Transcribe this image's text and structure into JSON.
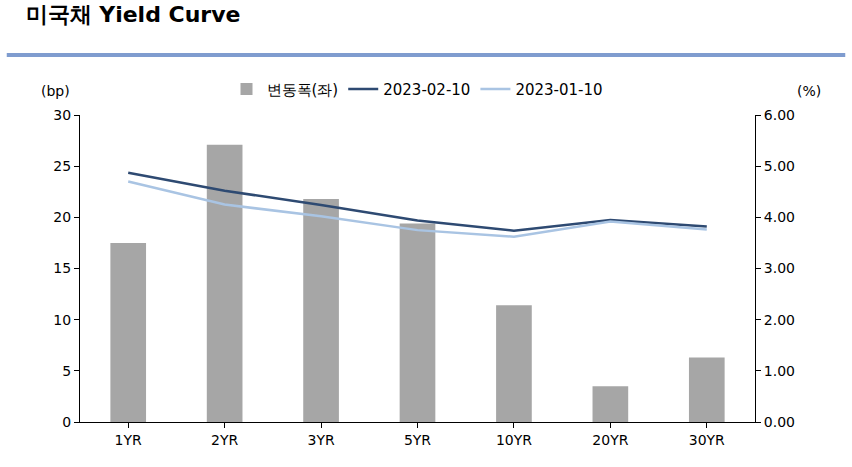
{
  "chart_data": {
    "type": "bar",
    "title": "미국채 Yield Curve",
    "ylabel": "(bp)",
    "y2label": "(%)",
    "categories": [
      "1YR",
      "2YR",
      "3YR",
      "5YR",
      "10YR",
      "20YR",
      "30YR"
    ],
    "series": [
      {
        "name": "변동폭(좌)",
        "type": "bar",
        "color": "#a6a6a6",
        "values": [
          17.5,
          27.1,
          21.8,
          19.4,
          11.4,
          3.5,
          6.3
        ]
      },
      {
        "name": "2023-02-10",
        "type": "line",
        "axis": "y2",
        "color": "#2e4a72",
        "values": [
          4.87,
          4.52,
          4.24,
          3.94,
          3.74,
          3.95,
          3.82
        ]
      },
      {
        "name": "2023-01-10",
        "type": "line",
        "axis": "y2",
        "color": "#a9c4e3",
        "values": [
          4.7,
          4.25,
          4.02,
          3.75,
          3.62,
          3.92,
          3.76
        ]
      }
    ],
    "ylim": [
      0,
      30
    ],
    "yticks": [
      0,
      5,
      10,
      15,
      20,
      25,
      30
    ],
    "y2lim": [
      0,
      6
    ],
    "y2ticks": [
      {
        "value": 0,
        "label": "0.00"
      },
      {
        "value": 1,
        "label": "1.00"
      },
      {
        "value": 2,
        "label": "2.00"
      },
      {
        "value": 3,
        "label": "3.00"
      },
      {
        "value": 4,
        "label": "4.00"
      },
      {
        "value": 5,
        "label": "5.00"
      },
      {
        "value": 6,
        "label": "6.00"
      }
    ],
    "grid": false,
    "legend": "top"
  }
}
